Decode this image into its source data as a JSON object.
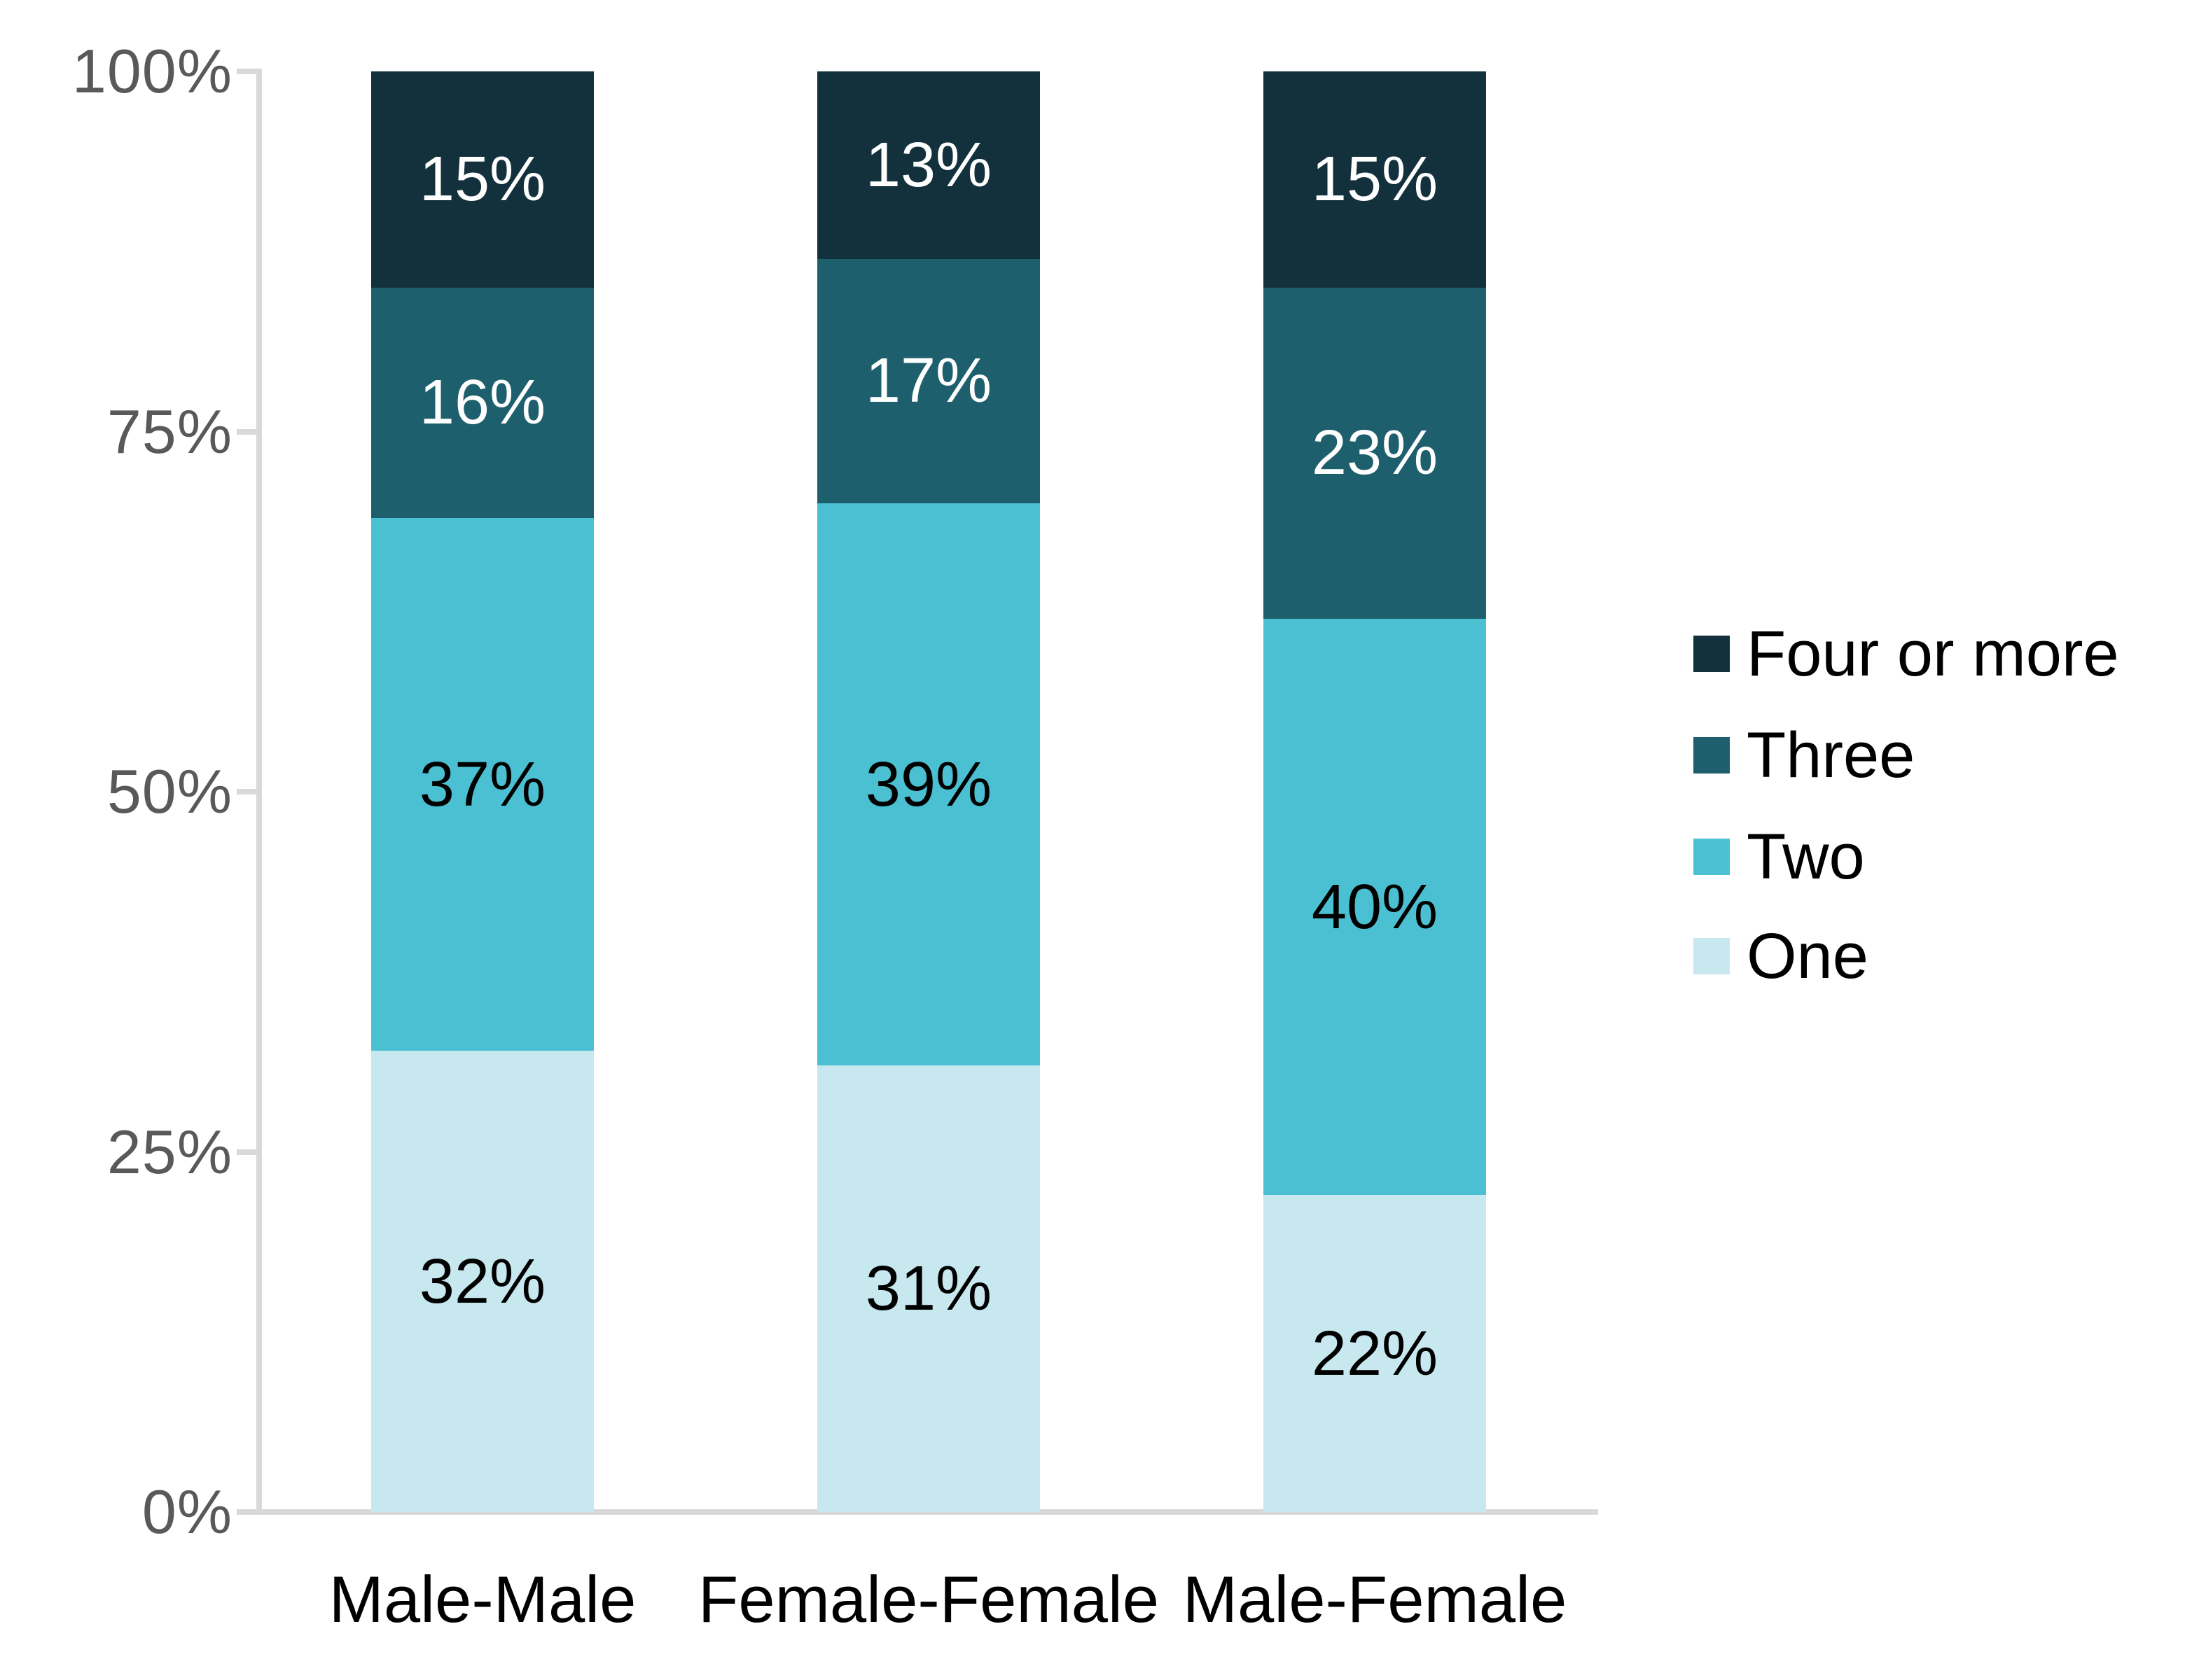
{
  "chart_data": {
    "type": "bar",
    "subtype": "stacked-100",
    "title": "",
    "xlabel": "",
    "ylabel": "",
    "categories": [
      "Male-Male",
      "Female-Female",
      "Male-Female"
    ],
    "series": [
      {
        "name": "One",
        "color": "#c8e8f0",
        "label_color": "#000000",
        "values": [
          32,
          31,
          22
        ]
      },
      {
        "name": "Two",
        "color": "#4bc0d2",
        "label_color": "#000000",
        "values": [
          37,
          39,
          40
        ]
      },
      {
        "name": "Three",
        "color": "#1e5f6e",
        "label_color": "#ffffff",
        "values": [
          16,
          17,
          23
        ]
      },
      {
        "name": "Four or more",
        "color": "#13313c",
        "label_color": "#ffffff",
        "values": [
          15,
          13,
          15
        ]
      }
    ],
    "value_suffix": "%",
    "y_axis": {
      "tick_labels": [
        "0%",
        "25%",
        "50%",
        "75%",
        "100%"
      ],
      "tick_values": [
        0,
        25,
        50,
        75,
        100
      ],
      "min": 0,
      "max": 100,
      "grid": false
    },
    "legend": {
      "position": "right",
      "entries": [
        "Four or more",
        "Three",
        "Two",
        "One"
      ]
    },
    "colors": {
      "axis_line": "#d9d9d9",
      "axis_label": "#595959",
      "background": "#ffffff"
    }
  }
}
